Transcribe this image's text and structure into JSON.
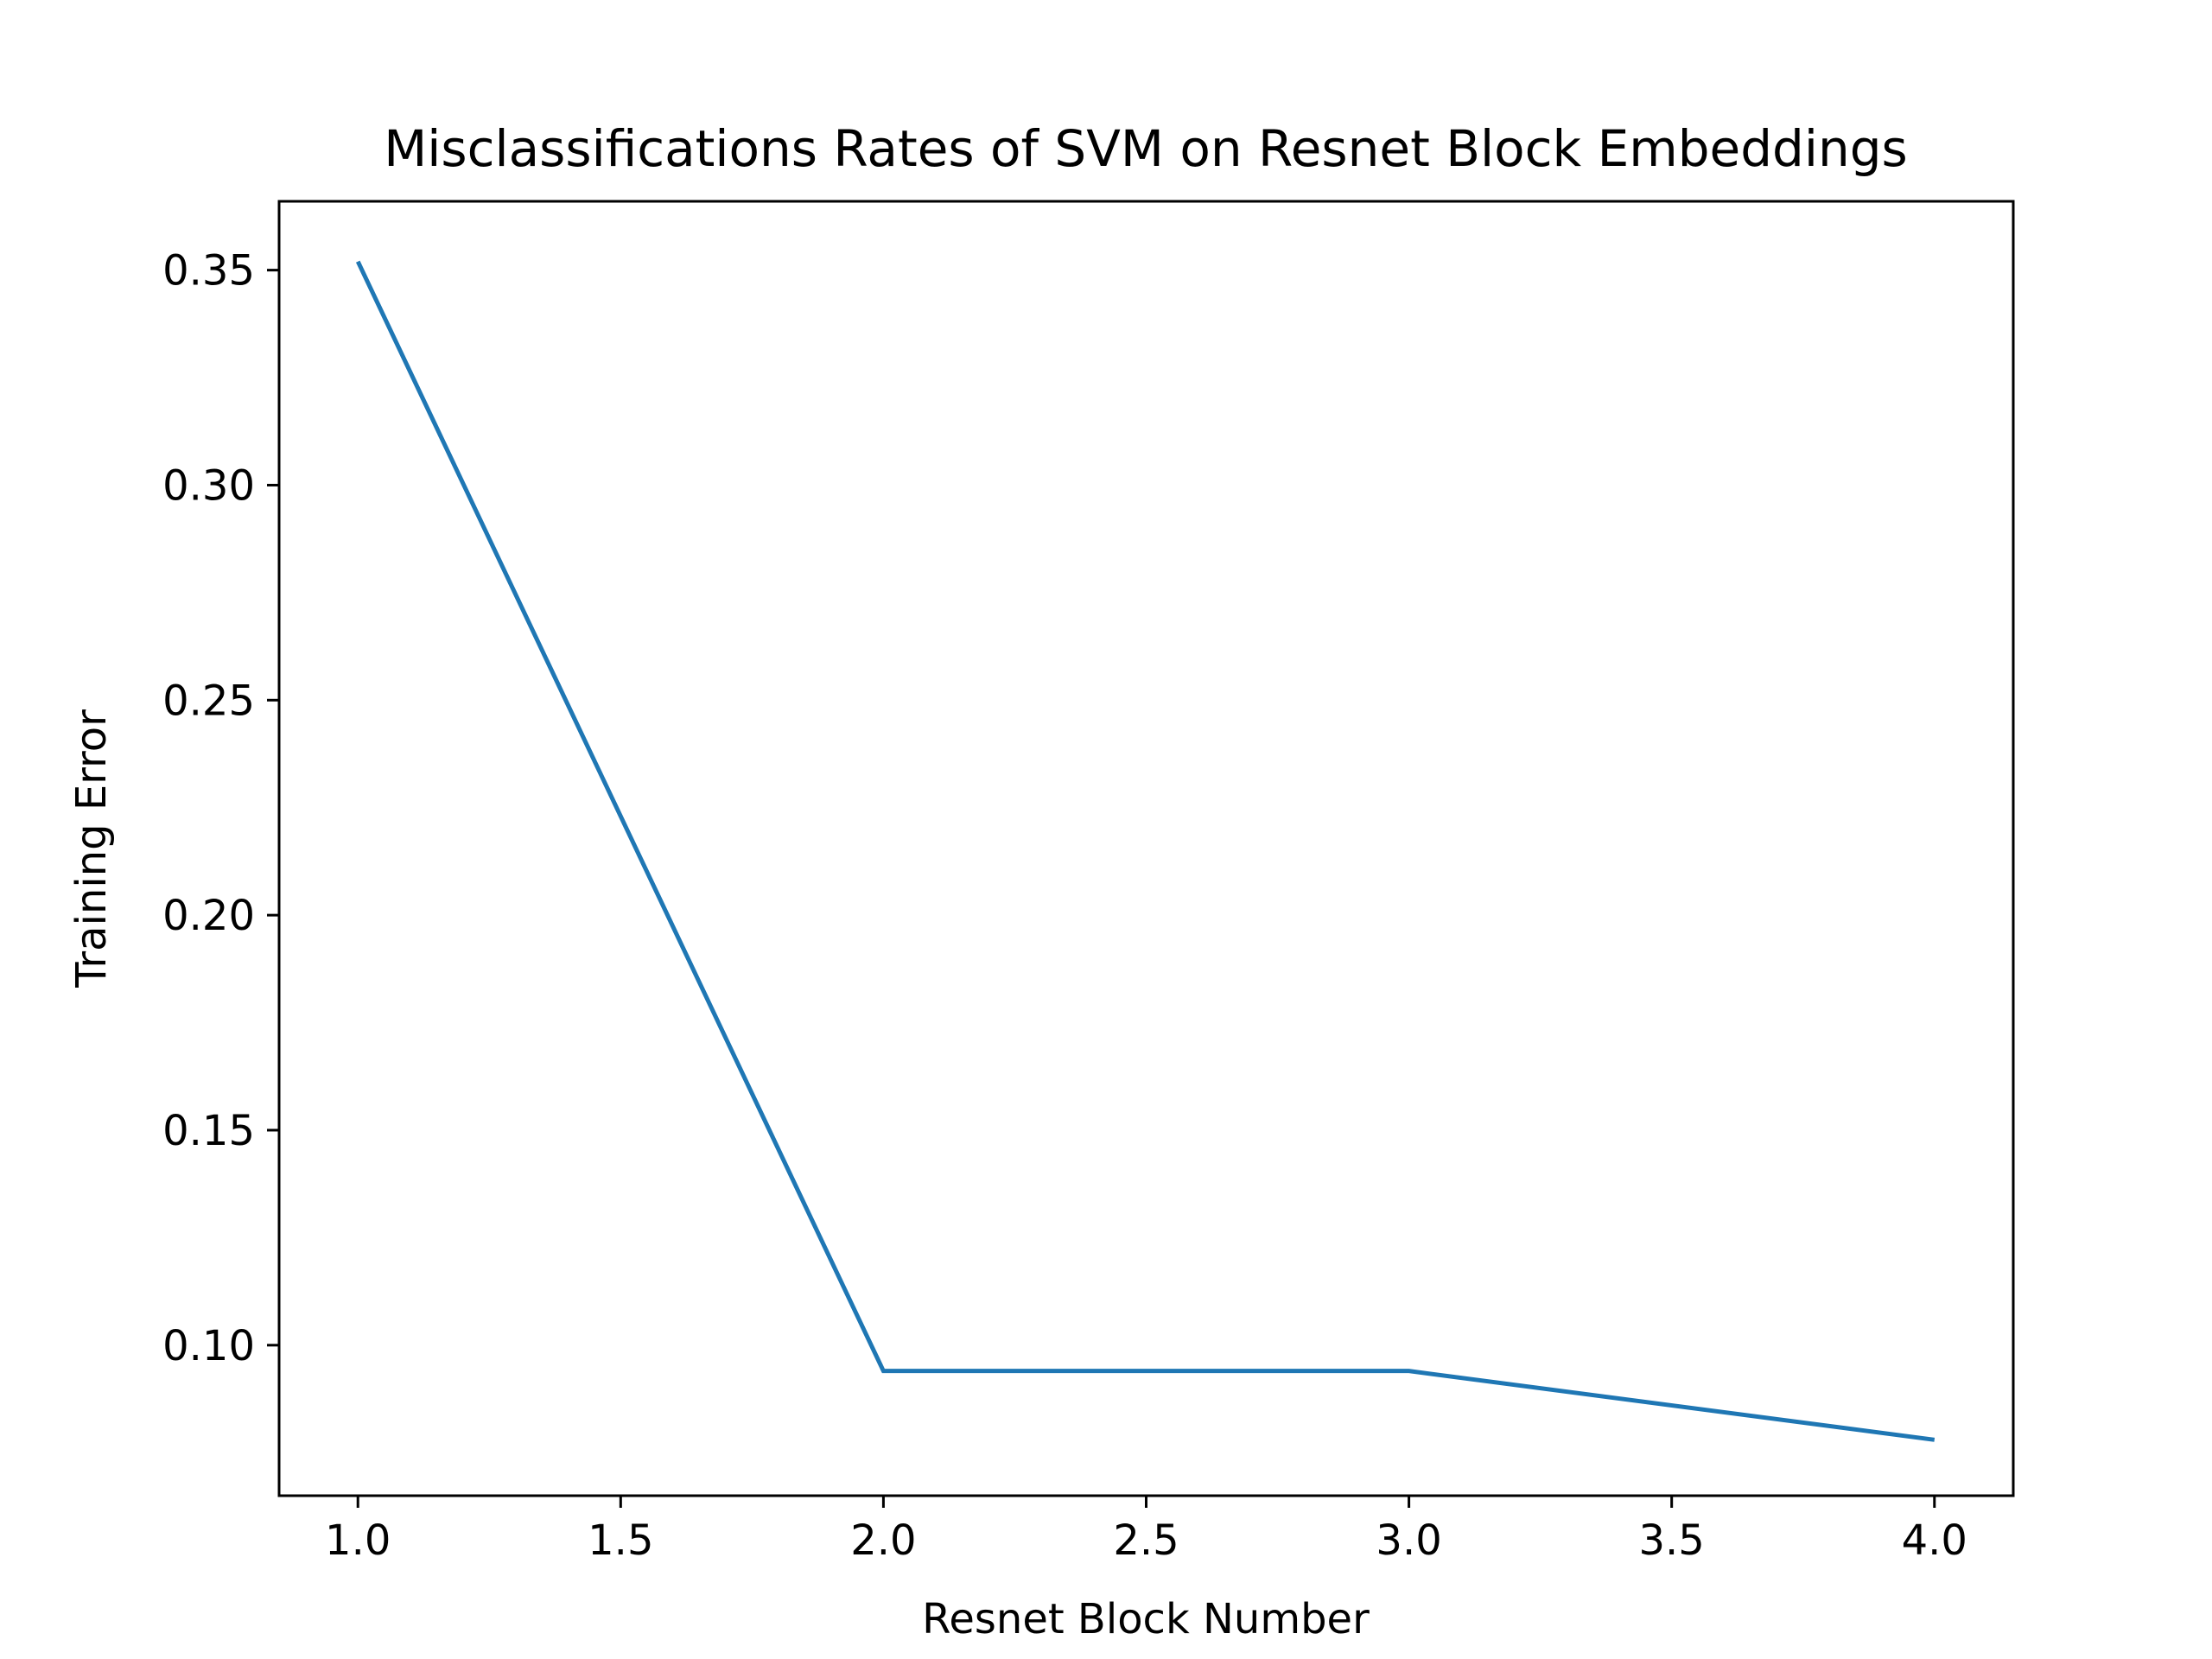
{
  "chart_data": {
    "type": "line",
    "title": "Misclassifications Rates of SVM on Resnet Block Embeddings",
    "xlabel": "Resnet Block Number",
    "ylabel": "Training Error",
    "x": [
      1.0,
      2.0,
      3.0,
      4.0
    ],
    "series": [
      {
        "values": [
          0.352,
          0.094,
          0.094,
          0.078
        ],
        "color": "#1f77b4"
      }
    ],
    "xlim": [
      0.85,
      4.15
    ],
    "ylim": [
      0.065,
      0.366
    ],
    "xticks": [
      1.0,
      1.5,
      2.0,
      2.5,
      3.0,
      3.5,
      4.0
    ],
    "xtick_labels": [
      "1.0",
      "1.5",
      "2.0",
      "2.5",
      "3.0",
      "3.5",
      "4.0"
    ],
    "yticks": [
      0.1,
      0.15,
      0.2,
      0.25,
      0.3,
      0.35
    ],
    "ytick_labels": [
      "0.10",
      "0.15",
      "0.20",
      "0.25",
      "0.30",
      "0.35"
    ],
    "grid": false,
    "legend": "none"
  }
}
